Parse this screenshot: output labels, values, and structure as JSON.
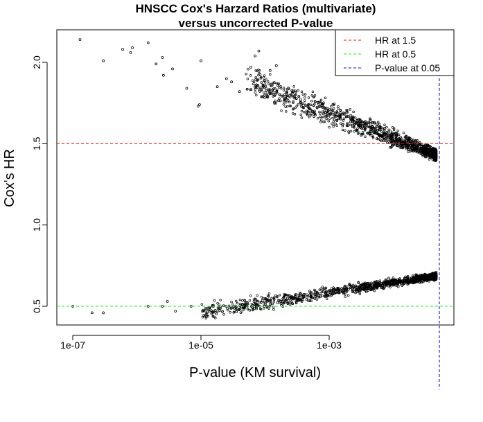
{
  "chart_data": {
    "type": "scatter",
    "title_line1": "HNSCC Cox's Harzard Ratios (multivariate)",
    "title_line2": "versus uncorrected P-value",
    "xlabel": "P-value (KM survival)",
    "ylabel": "Cox's HR",
    "x_scale": "log10",
    "xlim": [
      3e-08,
      0.2
    ],
    "ylim": [
      0.38,
      2.2
    ],
    "x_ticks": [
      1e-07,
      1e-05,
      0.001
    ],
    "x_tick_labels": [
      "1e-07",
      "1e-05",
      "1e-03"
    ],
    "y_ticks": [
      0.5,
      1.0,
      1.5,
      2.0
    ],
    "y_tick_labels": [
      "0.5",
      "1.0",
      "1.5",
      "2.0"
    ],
    "grid": false,
    "legend_position": "top-right",
    "point_style": {
      "shape": "open-circle",
      "color": "#000000"
    },
    "reference_lines": [
      {
        "label": "HR at 1.5",
        "orientation": "horizontal",
        "value": 1.5,
        "color": "#ff0000",
        "dash": "dashed"
      },
      {
        "label": "HR at 0.5",
        "orientation": "horizontal",
        "value": 0.5,
        "color": "#00ff00",
        "dash": "dashed"
      },
      {
        "label": "P-value at 0.05",
        "orientation": "vertical",
        "value": 0.05,
        "color": "#0000cc",
        "dash": "dashed"
      }
    ],
    "series": [
      {
        "values": [
          [
            1.3e-07,
            2.14
          ],
          [
            3e-07,
            2.01
          ],
          [
            6e-07,
            2.08
          ],
          [
            8e-07,
            2.06
          ],
          [
            8.5e-07,
            2.09
          ],
          [
            1.5e-06,
            2.12
          ],
          [
            2e-06,
            1.99
          ],
          [
            2.5e-06,
            2.03
          ],
          [
            2.6e-06,
            1.92
          ],
          [
            3.6e-06,
            1.96
          ],
          [
            6e-06,
            1.84
          ],
          [
            1e-05,
            2.01
          ],
          [
            9e-06,
            1.73
          ],
          [
            9.5e-06,
            1.74
          ],
          [
            1.8e-05,
            1.85
          ],
          [
            2.5e-05,
            1.9
          ],
          [
            3e-05,
            1.88
          ],
          [
            4e-05,
            1.82
          ],
          [
            6e-05,
            1.97
          ],
          [
            7e-05,
            2.04
          ],
          [
            8e-05,
            2.07
          ],
          [
            0.00012,
            1.95
          ],
          [
            0.00015,
            1.98
          ],
          [
            1e-07,
            0.5
          ],
          [
            2e-07,
            0.46
          ],
          [
            3e-07,
            0.46
          ],
          [
            1.5e-06,
            0.5
          ],
          [
            2.5e-06,
            0.5
          ],
          [
            3e-06,
            0.53
          ],
          [
            4e-06,
            0.47
          ],
          [
            7e-06,
            0.5
          ]
        ]
      }
    ]
  }
}
